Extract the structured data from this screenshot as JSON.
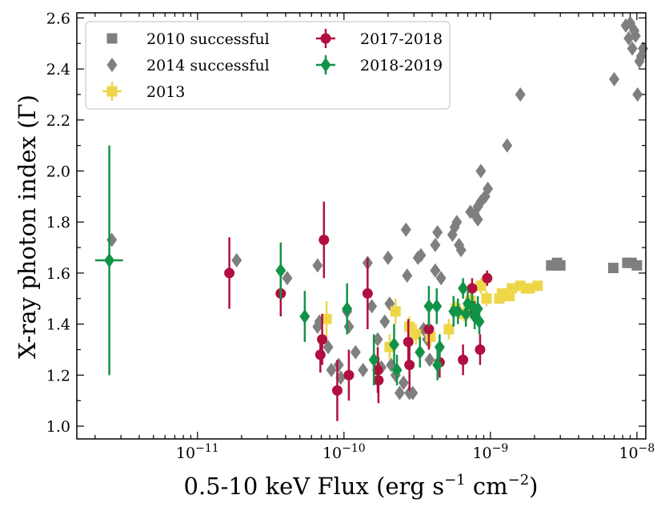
{
  "chart_data": {
    "type": "scatter",
    "title": "",
    "xlabel": "0.5-10 keV Flux (erg s",
    "xlabel_sup1": "−1",
    "xlabel_mid": " cm",
    "xlabel_sup2": "−2",
    "xlabel_end": ")",
    "ylabel": "X-ray photon index (Γ)",
    "xscale": "log",
    "xlim": [
      1.5e-12,
      1.15e-08
    ],
    "ylim": [
      0.95,
      2.62
    ],
    "x_tick_labels": [
      {
        "value": 1e-11,
        "base": "10",
        "exp": "−11"
      },
      {
        "value": 1e-10,
        "base": "10",
        "exp": "−10"
      },
      {
        "value": 1e-09,
        "base": "10",
        "exp": "−9"
      },
      {
        "value": 1e-08,
        "base": "10",
        "exp": "−8"
      }
    ],
    "y_ticks": [
      1.0,
      1.2,
      1.4,
      1.6,
      1.8,
      2.0,
      2.2,
      2.4,
      2.6
    ],
    "y_tick_labels": [
      "1.0",
      "1.2",
      "1.4",
      "1.6",
      "1.8",
      "2.0",
      "2.2",
      "2.4",
      "2.6"
    ],
    "legend_position": "top-left",
    "series": [
      {
        "name": "2010 successful",
        "marker": "square",
        "color": "#7f7f7f",
        "points": [
          {
            "x": 2.6e-09,
            "y": 1.63
          },
          {
            "x": 2.85e-09,
            "y": 1.64
          },
          {
            "x": 3e-09,
            "y": 1.63
          },
          {
            "x": 6.9e-09,
            "y": 1.62
          },
          {
            "x": 8.6e-09,
            "y": 1.64
          },
          {
            "x": 9.2e-09,
            "y": 1.64
          },
          {
            "x": 1e-08,
            "y": 1.63
          }
        ]
      },
      {
        "name": "2014 successful",
        "marker": "diamond",
        "color": "#7f7f7f",
        "points": [
          {
            "x": 2.6e-12,
            "y": 1.73
          },
          {
            "x": 1.85e-11,
            "y": 1.65
          },
          {
            "x": 4.1e-11,
            "y": 1.58
          },
          {
            "x": 6.6e-11,
            "y": 1.63
          },
          {
            "x": 6.8e-11,
            "y": 1.41
          },
          {
            "x": 6.6e-11,
            "y": 1.39
          },
          {
            "x": 7.8e-11,
            "y": 1.31
          },
          {
            "x": 8.2e-11,
            "y": 1.22
          },
          {
            "x": 9.2e-11,
            "y": 1.24
          },
          {
            "x": 9.5e-11,
            "y": 1.19
          },
          {
            "x": 1.05e-10,
            "y": 1.45
          },
          {
            "x": 1.08e-10,
            "y": 1.39
          },
          {
            "x": 1.2e-10,
            "y": 1.29
          },
          {
            "x": 1.35e-10,
            "y": 1.22
          },
          {
            "x": 1.45e-10,
            "y": 1.64
          },
          {
            "x": 1.55e-10,
            "y": 1.47
          },
          {
            "x": 1.7e-10,
            "y": 1.34
          },
          {
            "x": 1.8e-10,
            "y": 1.23
          },
          {
            "x": 1.9e-10,
            "y": 1.41
          },
          {
            "x": 2e-10,
            "y": 1.66
          },
          {
            "x": 2.05e-10,
            "y": 1.48
          },
          {
            "x": 2.1e-10,
            "y": 1.24
          },
          {
            "x": 2.25e-10,
            "y": 1.2
          },
          {
            "x": 2.4e-10,
            "y": 1.13
          },
          {
            "x": 2.55e-10,
            "y": 1.17
          },
          {
            "x": 2.65e-10,
            "y": 1.77
          },
          {
            "x": 2.7e-10,
            "y": 1.59
          },
          {
            "x": 2.8e-10,
            "y": 1.13
          },
          {
            "x": 2.95e-10,
            "y": 1.13
          },
          {
            "x": 3.2e-10,
            "y": 1.66
          },
          {
            "x": 3.35e-10,
            "y": 1.67
          },
          {
            "x": 3.5e-10,
            "y": 1.38
          },
          {
            "x": 3.7e-10,
            "y": 1.34
          },
          {
            "x": 3.85e-10,
            "y": 1.26
          },
          {
            "x": 4.2e-10,
            "y": 1.71
          },
          {
            "x": 4.35e-10,
            "y": 1.76
          },
          {
            "x": 4.2e-10,
            "y": 1.61
          },
          {
            "x": 4.6e-10,
            "y": 1.58
          },
          {
            "x": 5.5e-10,
            "y": 1.75
          },
          {
            "x": 5.7e-10,
            "y": 1.78
          },
          {
            "x": 5.9e-10,
            "y": 1.8
          },
          {
            "x": 6.3e-10,
            "y": 1.69
          },
          {
            "x": 6.1e-10,
            "y": 1.71
          },
          {
            "x": 7.3e-10,
            "y": 1.84
          },
          {
            "x": 7.8e-10,
            "y": 1.83
          },
          {
            "x": 8.2e-10,
            "y": 1.86
          },
          {
            "x": 8.6e-10,
            "y": 1.88
          },
          {
            "x": 8.2e-10,
            "y": 1.81
          },
          {
            "x": 8.6e-10,
            "y": 2.0
          },
          {
            "x": 9.2e-10,
            "y": 1.9
          },
          {
            "x": 9.6e-10,
            "y": 1.93
          },
          {
            "x": 1.3e-09,
            "y": 2.1
          },
          {
            "x": 1.6e-09,
            "y": 2.3
          },
          {
            "x": 7e-09,
            "y": 2.36
          },
          {
            "x": 8.4e-09,
            "y": 2.57
          },
          {
            "x": 8.8e-09,
            "y": 2.52
          },
          {
            "x": 9e-09,
            "y": 2.58
          },
          {
            "x": 9.3e-09,
            "y": 2.48
          },
          {
            "x": 9.6e-09,
            "y": 2.55
          },
          {
            "x": 9.8e-09,
            "y": 2.53
          },
          {
            "x": 1.01e-08,
            "y": 2.3
          },
          {
            "x": 1.04e-08,
            "y": 2.43
          },
          {
            "x": 1.07e-08,
            "y": 2.45
          },
          {
            "x": 1.1e-08,
            "y": 2.48
          }
        ]
      },
      {
        "name": "2013",
        "marker": "square",
        "color": "#eed649",
        "errorbars": true,
        "points": [
          {
            "x": 7.6e-11,
            "y": 1.42,
            "yerr": 0.07
          },
          {
            "x": 2.05e-10,
            "y": 1.31,
            "yerr": 0.05
          },
          {
            "x": 2.25e-10,
            "y": 1.45,
            "yerr": 0.05
          },
          {
            "x": 2.8e-10,
            "y": 1.39,
            "yerr": 0.04
          },
          {
            "x": 3.1e-10,
            "y": 1.36,
            "yerr": 0.04
          },
          {
            "x": 3.9e-10,
            "y": 1.35,
            "yerr": 0.04
          },
          {
            "x": 5.2e-10,
            "y": 1.38,
            "yerr": 0.04
          },
          {
            "x": 5.8e-10,
            "y": 1.46,
            "yerr": 0.03
          },
          {
            "x": 6.6e-10,
            "y": 1.44,
            "yerr": 0.03
          },
          {
            "x": 7.3e-10,
            "y": 1.49,
            "yerr": 0.03
          },
          {
            "x": 8.6e-10,
            "y": 1.55,
            "yerr": 0.03
          },
          {
            "x": 9.4e-10,
            "y": 1.5,
            "yerr": 0.03
          },
          {
            "x": 1.15e-09,
            "y": 1.5,
            "yerr": 0.02
          },
          {
            "x": 1.2e-09,
            "y": 1.52,
            "yerr": 0.02
          },
          {
            "x": 1.35e-09,
            "y": 1.51,
            "yerr": 0.02
          },
          {
            "x": 1.4e-09,
            "y": 1.54,
            "yerr": 0.02
          },
          {
            "x": 1.6e-09,
            "y": 1.55,
            "yerr": 0.02
          },
          {
            "x": 1.75e-09,
            "y": 1.54,
            "yerr": 0.02
          },
          {
            "x": 1.85e-09,
            "y": 1.54,
            "yerr": 0.02
          },
          {
            "x": 2.1e-09,
            "y": 1.55,
            "yerr": 0.02
          }
        ]
      },
      {
        "name": "2017-2018",
        "marker": "circle",
        "color": "#b10f3f",
        "errorbars": true,
        "points": [
          {
            "x": 1.65e-11,
            "y": 1.6,
            "yerr": 0.14
          },
          {
            "x": 3.7e-11,
            "y": 1.52,
            "yerr": 0.09
          },
          {
            "x": 6.9e-11,
            "y": 1.28,
            "yerr": 0.07
          },
          {
            "x": 7.1e-11,
            "y": 1.34,
            "yerr": 0.1
          },
          {
            "x": 7.3e-11,
            "y": 1.73,
            "yerr": 0.15
          },
          {
            "x": 9e-11,
            "y": 1.14,
            "yerr": 0.12
          },
          {
            "x": 1.08e-10,
            "y": 1.2,
            "yerr": 0.1
          },
          {
            "x": 1.45e-10,
            "y": 1.52,
            "yerr": 0.14
          },
          {
            "x": 1.7e-10,
            "y": 1.22,
            "yerr": 0.09
          },
          {
            "x": 1.72e-10,
            "y": 1.18,
            "yerr": 0.09
          },
          {
            "x": 2.75e-10,
            "y": 1.33,
            "yerr": 0.09
          },
          {
            "x": 2.8e-10,
            "y": 1.24,
            "yerr": 0.1
          },
          {
            "x": 3.8e-10,
            "y": 1.38,
            "yerr": 0.08
          },
          {
            "x": 4.5e-10,
            "y": 1.25,
            "yerr": 0.06
          },
          {
            "x": 6.5e-10,
            "y": 1.26,
            "yerr": 0.06
          },
          {
            "x": 7.5e-10,
            "y": 1.54,
            "yerr": 0.04
          },
          {
            "x": 7.8e-10,
            "y": 1.45,
            "yerr": 0.04
          },
          {
            "x": 8.5e-10,
            "y": 1.3,
            "yerr": 0.06
          },
          {
            "x": 9.5e-10,
            "y": 1.58,
            "yerr": 0.03
          }
        ]
      },
      {
        "name": "2018-2019",
        "marker": "diamond",
        "color": "#119347",
        "errorbars": true,
        "xerrorbars": true,
        "points": [
          {
            "x": 2.5e-12,
            "y": 1.65,
            "yerr": 0.45,
            "xerr_lo": 5e-13,
            "xerr_hi": 6e-13
          },
          {
            "x": 3.7e-11,
            "y": 1.61,
            "yerr": 0.11
          },
          {
            "x": 5.4e-11,
            "y": 1.43,
            "yerr": 0.1
          },
          {
            "x": 1.05e-10,
            "y": 1.46,
            "yerr": 0.1
          },
          {
            "x": 1.6e-10,
            "y": 1.26,
            "yerr": 0.1
          },
          {
            "x": 2.2e-10,
            "y": 1.32,
            "yerr": 0.08
          },
          {
            "x": 2.3e-10,
            "y": 1.22,
            "yerr": 0.06
          },
          {
            "x": 3.3e-10,
            "y": 1.29,
            "yerr": 0.06
          },
          {
            "x": 3.8e-10,
            "y": 1.47,
            "yerr": 0.08
          },
          {
            "x": 4.3e-10,
            "y": 1.47,
            "yerr": 0.07
          },
          {
            "x": 4.35e-10,
            "y": 1.24,
            "yerr": 0.06
          },
          {
            "x": 4.5e-10,
            "y": 1.31,
            "yerr": 0.05
          },
          {
            "x": 5.6e-10,
            "y": 1.45,
            "yerr": 0.06
          },
          {
            "x": 6e-10,
            "y": 1.45,
            "yerr": 0.05
          },
          {
            "x": 6.5e-10,
            "y": 1.54,
            "yerr": 0.04
          },
          {
            "x": 6.8e-10,
            "y": 1.44,
            "yerr": 0.05
          },
          {
            "x": 7e-10,
            "y": 1.48,
            "yerr": 0.05
          },
          {
            "x": 7.5e-10,
            "y": 1.47,
            "yerr": 0.05
          },
          {
            "x": 7.8e-10,
            "y": 1.43,
            "yerr": 0.05
          },
          {
            "x": 8.2e-10,
            "y": 1.46,
            "yerr": 0.05
          },
          {
            "x": 8.4e-10,
            "y": 1.41,
            "yerr": 0.05
          }
        ]
      }
    ],
    "legend": [
      {
        "label": "2010 successful",
        "marker": "square",
        "color": "#7f7f7f",
        "errorbar": false
      },
      {
        "label": "2014 successful",
        "marker": "diamond",
        "color": "#7f7f7f",
        "errorbar": false
      },
      {
        "label": "2013",
        "marker": "square",
        "color": "#eed649",
        "errorbar": true
      },
      {
        "label": "2017-2018",
        "marker": "circle",
        "color": "#b10f3f",
        "errorbar": true
      },
      {
        "label": "2018-2019",
        "marker": "diamond",
        "color": "#119347",
        "errorbar": true
      }
    ]
  }
}
